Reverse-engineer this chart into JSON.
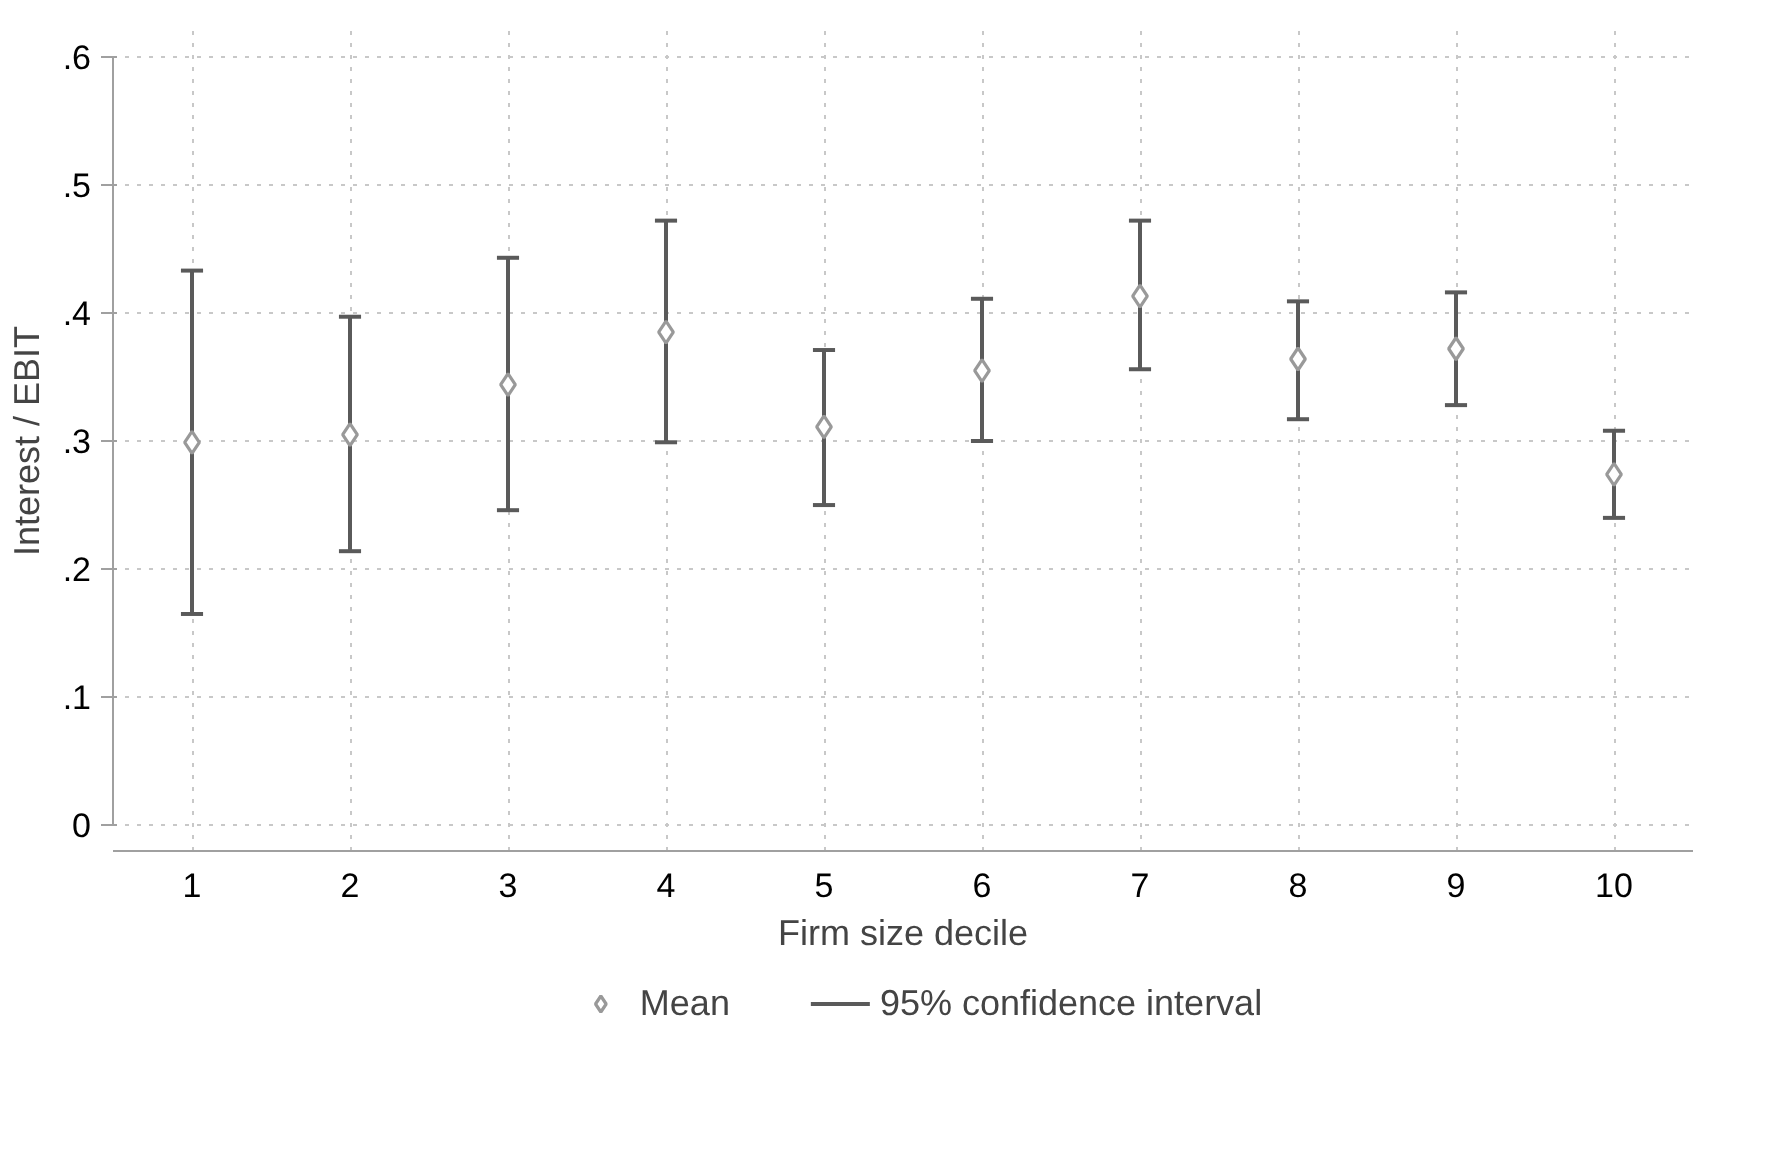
{
  "chart_data": {
    "type": "scatter",
    "xlabel": "Firm size decile",
    "ylabel": "Interest / EBIT",
    "x": [
      1,
      2,
      3,
      4,
      5,
      6,
      7,
      8,
      9,
      10
    ],
    "series": [
      {
        "name": "Mean",
        "color": "#999999",
        "values": [
          0.299,
          0.305,
          0.344,
          0.385,
          0.311,
          0.355,
          0.413,
          0.364,
          0.372,
          0.274
        ],
        "errors": [
          [
            0.165,
            0.433
          ],
          [
            0.214,
            0.397
          ],
          [
            0.246,
            0.443
          ],
          [
            0.299,
            0.472
          ],
          [
            0.25,
            0.371
          ],
          [
            0.3,
            0.411
          ],
          [
            0.356,
            0.472
          ],
          [
            0.317,
            0.409
          ],
          [
            0.328,
            0.416
          ],
          [
            0.24,
            0.308
          ]
        ]
      }
    ],
    "annotations": [
      "95% confidence interval"
    ],
    "xlim": [
      0.5,
      10.5
    ],
    "xticks": [
      1,
      2,
      3,
      4,
      5,
      6,
      7,
      8,
      9,
      10
    ],
    "ylim": [
      -0.02,
      0.62
    ],
    "yticks": [
      0,
      {
        "value": 0.1,
        "label": ".1"
      },
      {
        "value": 0.2,
        "label": ".2"
      },
      {
        "value": 0.3,
        "label": ".3"
      },
      {
        "value": 0.4,
        "label": ".4"
      },
      {
        "value": 0.5,
        "label": ".5"
      },
      {
        "value": 0.6,
        "label": ".6"
      }
    ],
    "grid": true,
    "legend": "bottom",
    "marker": "diamond"
  }
}
